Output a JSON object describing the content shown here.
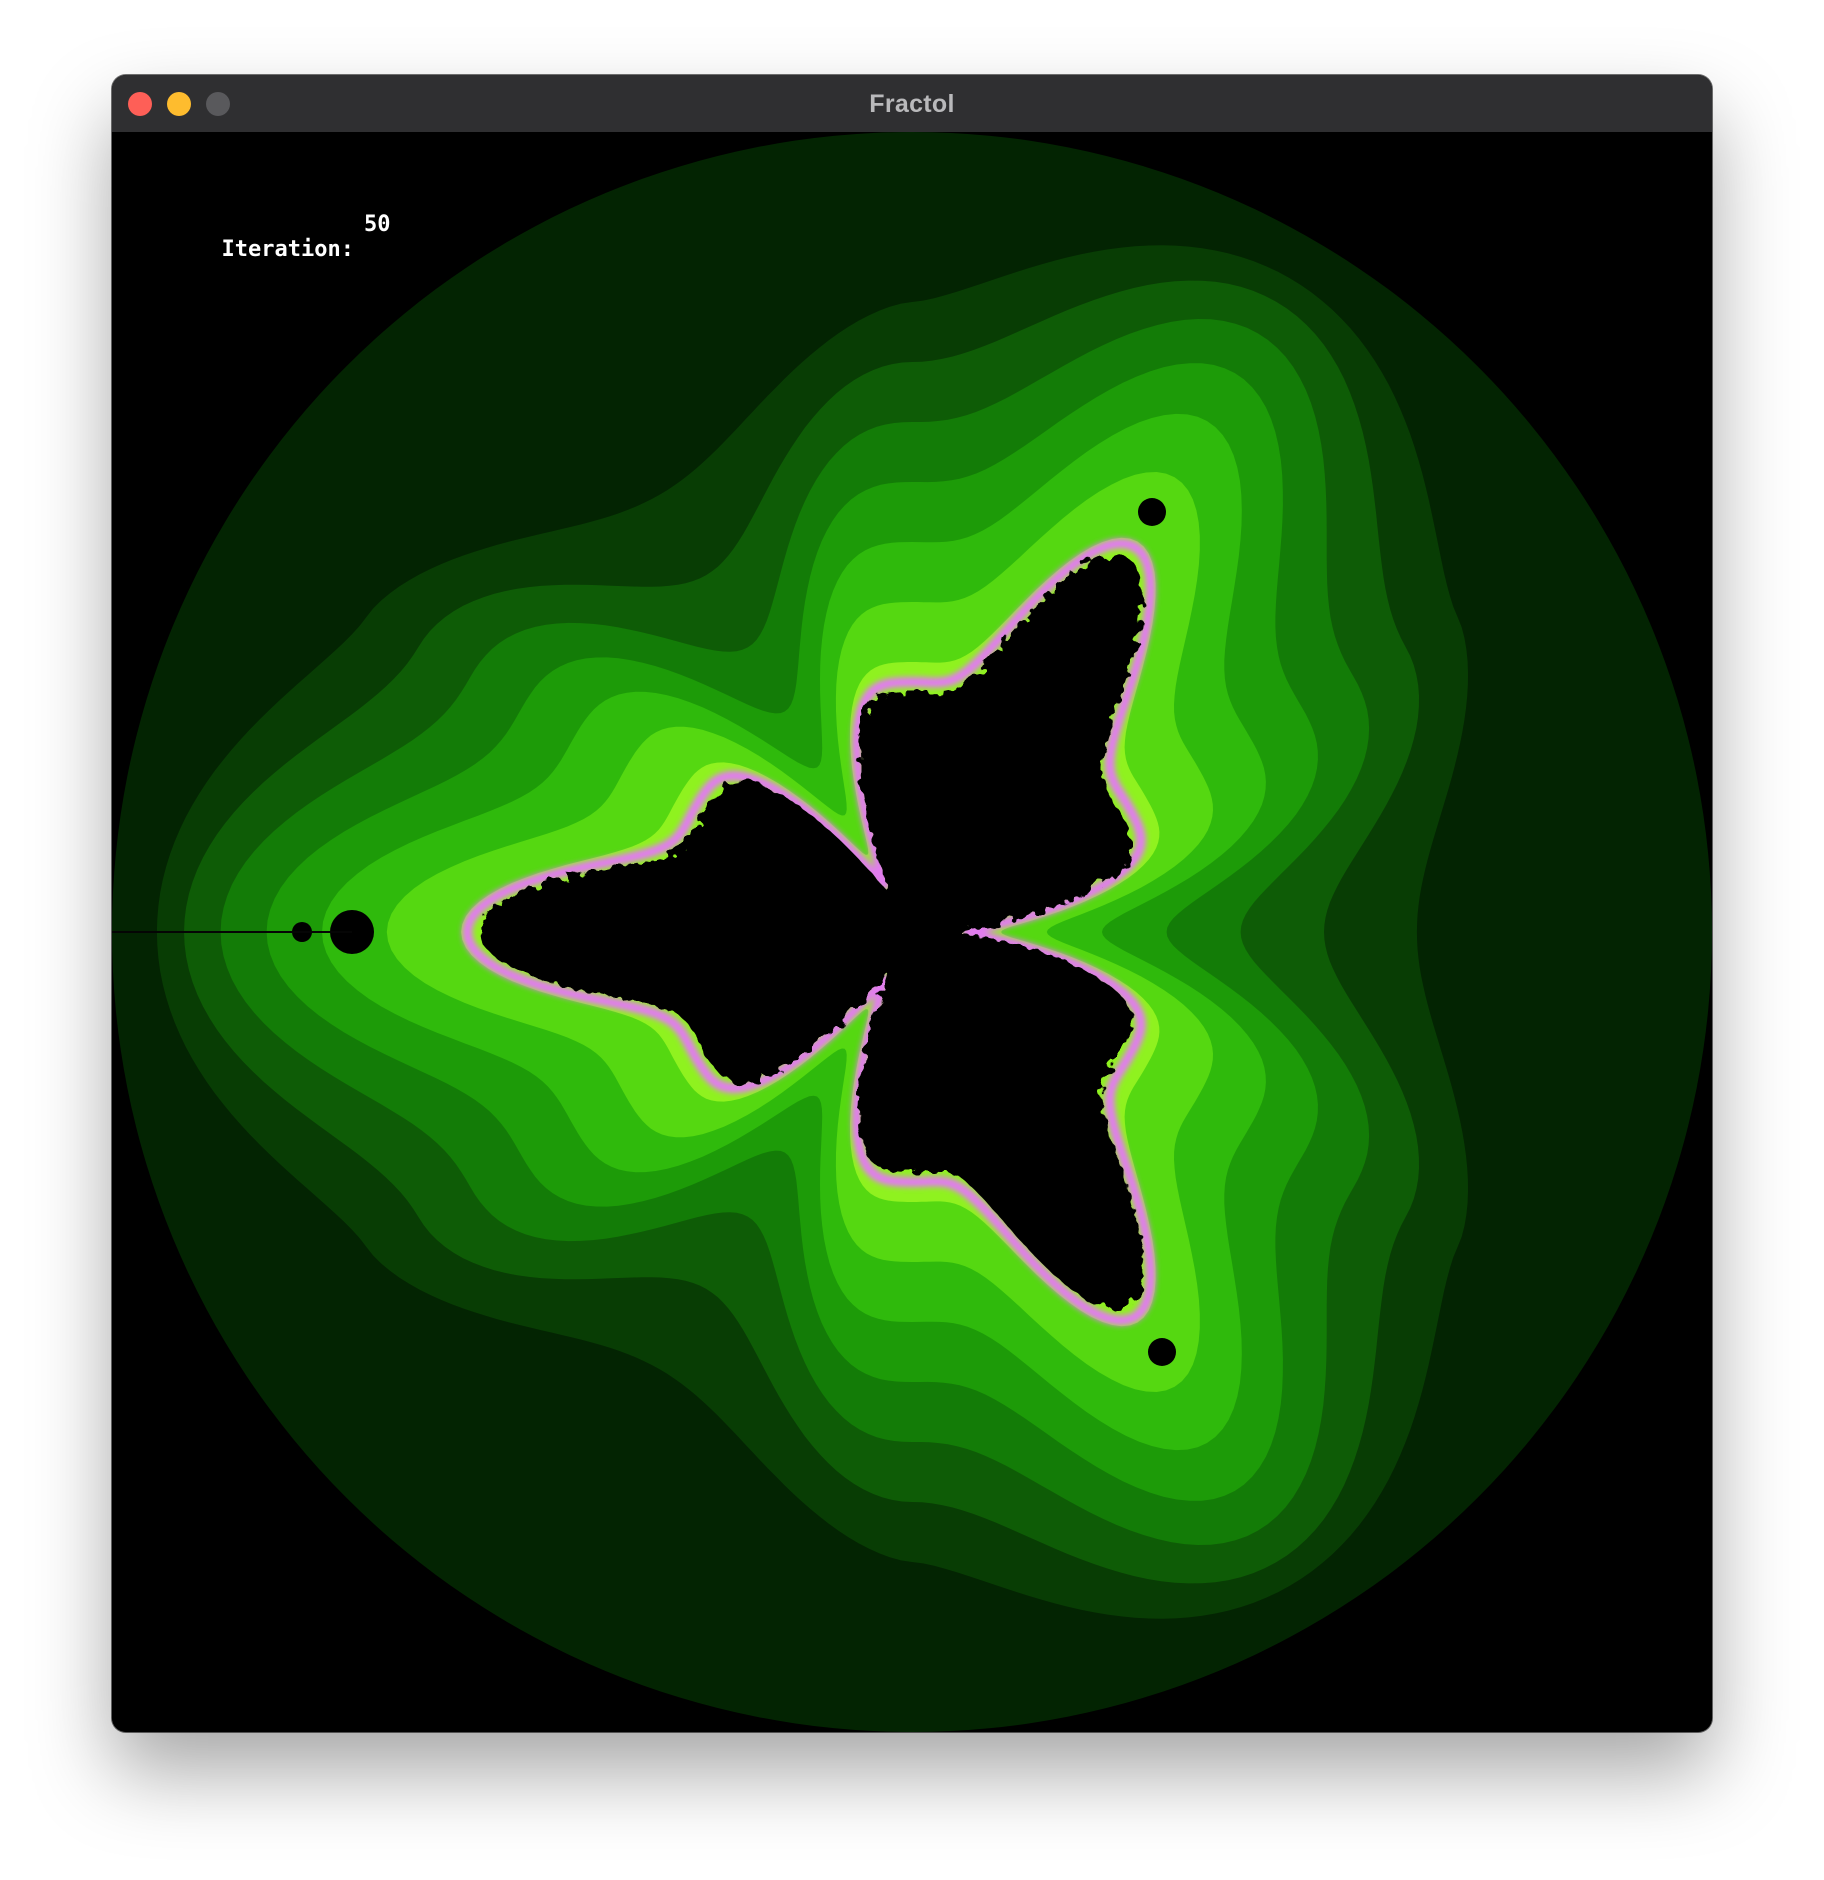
{
  "window": {
    "title": "Fractol",
    "traffic_lights": {
      "close_color": "#fe5f57",
      "minimize_color": "#febc2e",
      "zoom_color": "#59595c"
    }
  },
  "hud": {
    "iteration_label": "Iteration:",
    "iteration_value": "50"
  },
  "fractal": {
    "type": "multibrot (degree 4)",
    "palette": {
      "background": "#000000",
      "bands": [
        "#032402",
        "#083d04",
        "#0e5c06",
        "#137c07",
        "#1d9b08",
        "#2fba0c",
        "#55d811",
        "#8ff21f"
      ],
      "edge_glow": "#e27bf0",
      "set_color": "#000000"
    }
  }
}
